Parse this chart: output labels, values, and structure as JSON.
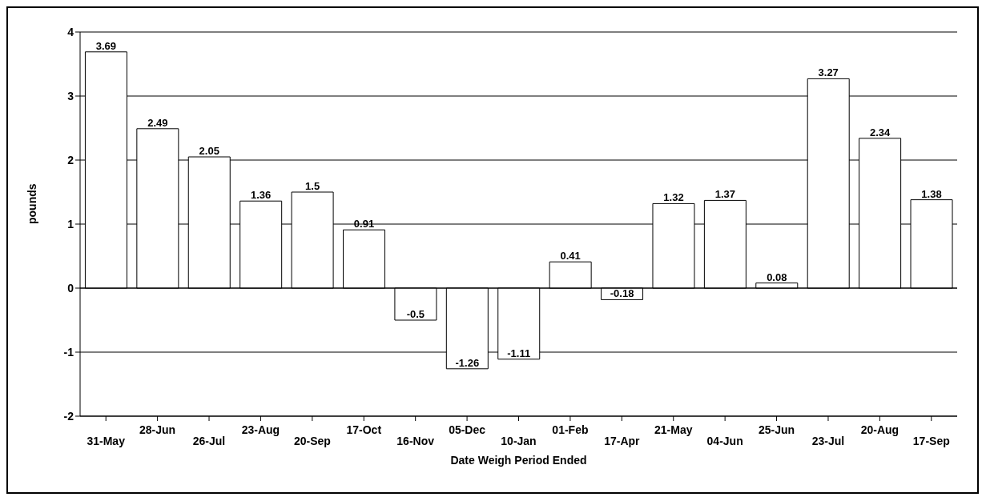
{
  "chart_data": {
    "type": "bar",
    "xlabel": "Date Weigh Period Ended",
    "ylabel": "pounds",
    "categories": [
      "31-May",
      "28-Jun",
      "26-Jul",
      "23-Aug",
      "20-Sep",
      "17-Oct",
      "16-Nov",
      "05-Dec",
      "10-Jan",
      "01-Feb",
      "17-Apr",
      "21-May",
      "04-Jun",
      "25-Jun",
      "23-Jul",
      "20-Aug",
      "17-Sep"
    ],
    "values": [
      3.69,
      2.49,
      2.05,
      1.36,
      1.5,
      0.91,
      -0.5,
      -1.26,
      -1.11,
      0.41,
      -0.18,
      1.32,
      1.37,
      0.08,
      3.27,
      2.34,
      1.38
    ],
    "color": "#ffffff",
    "ylim": [
      -2,
      4
    ],
    "yticks": [
      -2,
      -1,
      0,
      1,
      2,
      3,
      4
    ],
    "grid": "y",
    "data_labels": true
  }
}
